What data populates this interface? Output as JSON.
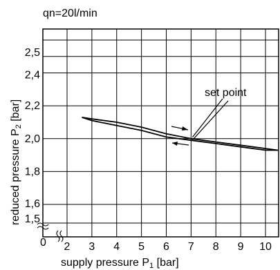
{
  "chart_data": {
    "type": "line",
    "title": "qn=20l/min",
    "xlabel_main": "supply pressure P",
    "xlabel_sub": "1",
    "xlabel_unit": " [bar]",
    "ylabel_main": "reduced pressure P",
    "ylabel_sub": "2",
    "ylabel_unit": " [bar]",
    "x_ticks": [
      {
        "label": "2",
        "value": 2
      },
      {
        "label": "3",
        "value": 3
      },
      {
        "label": "4",
        "value": 4
      },
      {
        "label": "5",
        "value": 5
      },
      {
        "label": "6",
        "value": 6
      },
      {
        "label": "7",
        "value": 7
      },
      {
        "label": "8",
        "value": 8
      },
      {
        "label": "9",
        "value": 9
      },
      {
        "label": "10",
        "value": 10
      }
    ],
    "y_ticks": [
      {
        "label": "1,5",
        "value": 1.5
      },
      {
        "label": "1,6",
        "value": 1.6
      },
      {
        "label": "1,8",
        "value": 1.8
      },
      {
        "label": "2,0",
        "value": 2.0
      },
      {
        "label": "2,2",
        "value": 2.2
      },
      {
        "label": "2,4",
        "value": 2.4
      },
      {
        "label": "2,5",
        "value": 2.5
      }
    ],
    "origin_label": "0",
    "xlim": [
      2,
      10.5
    ],
    "ylim": [
      1.5,
      2.6
    ],
    "y_grid": [
      1.6,
      1.8,
      2.0,
      2.2,
      2.4,
      2.5,
      2.6
    ],
    "grid": true,
    "annotation": "set point",
    "set_point": {
      "x": 7.0,
      "y": 2.0
    },
    "series": [
      {
        "x": [
          2.6,
          3.0,
          4.0,
          5.0,
          6.0,
          7.0,
          8.0,
          9.0,
          10.0,
          10.5
        ],
        "y": [
          2.13,
          2.12,
          2.1,
          2.07,
          2.03,
          2.0,
          1.98,
          1.96,
          1.94,
          1.93
        ]
      },
      {
        "x": [
          2.6,
          3.0,
          4.0,
          5.0,
          6.0,
          7.0,
          8.0,
          9.0,
          10.0,
          10.5
        ],
        "y": [
          2.13,
          2.11,
          2.08,
          2.05,
          2.01,
          1.99,
          1.97,
          1.95,
          1.93,
          1.93
        ]
      }
    ]
  }
}
